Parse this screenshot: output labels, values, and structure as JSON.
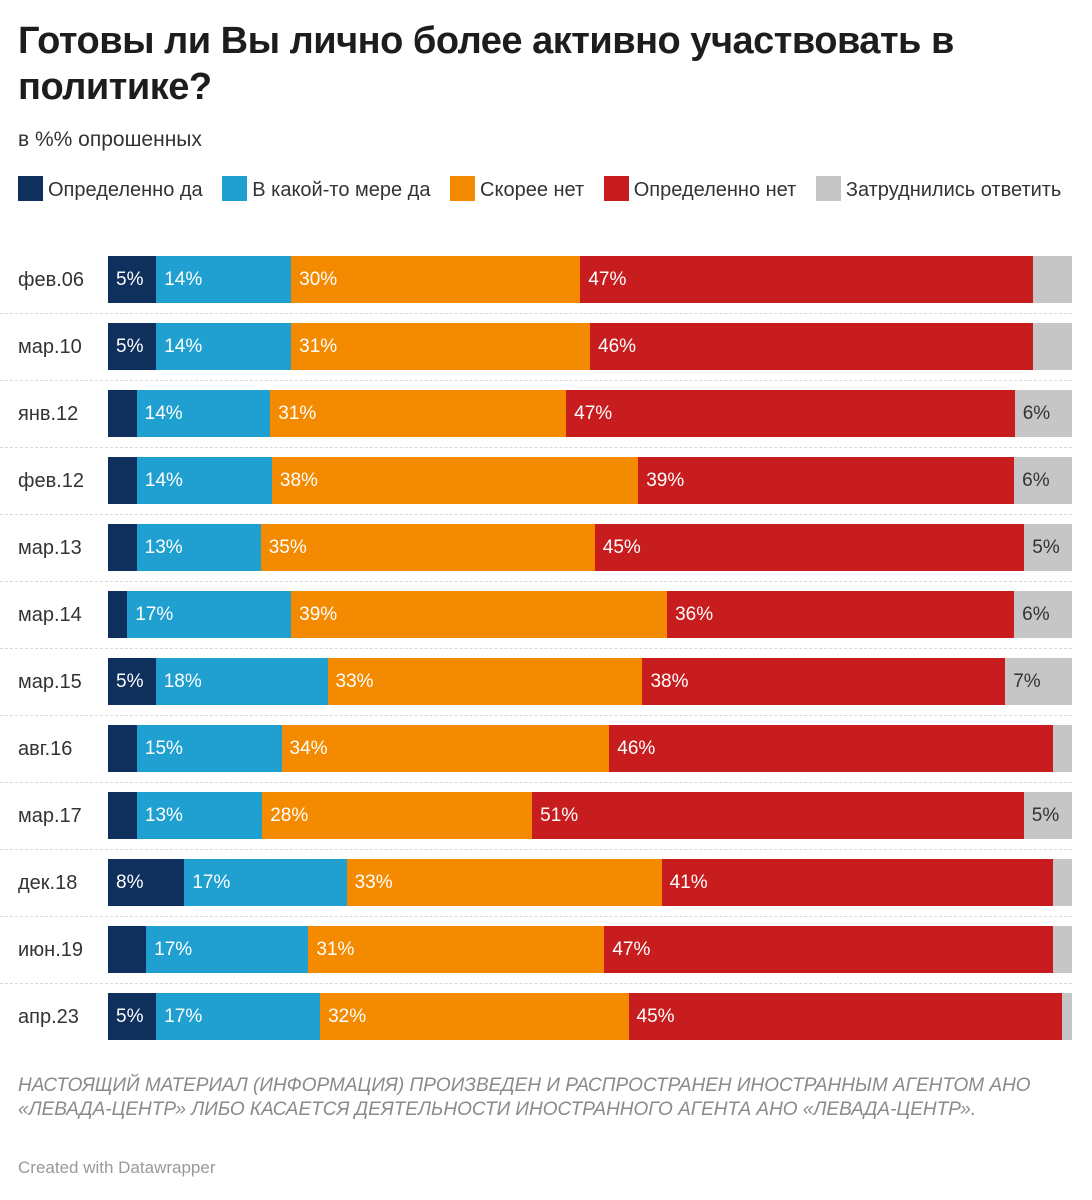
{
  "title": "Готовы ли Вы лично более активно участвовать в политике?",
  "subtitle": "в %% опрошенных",
  "legend": [
    {
      "label": "Определенно да",
      "color": "#0f2f5c"
    },
    {
      "label": "В какой-то мере да",
      "color": "#1fa0d0"
    },
    {
      "label": "Скорее нет",
      "color": "#f38a00"
    },
    {
      "label": "Определенно нет",
      "color": "#c81d1f"
    },
    {
      "label": "Затруднились ответить",
      "color": "#c6c6c6"
    }
  ],
  "chart_data": {
    "type": "bar",
    "orientation": "horizontal-stacked-100",
    "title": "Готовы ли Вы лично более активно участвовать в политике?",
    "subtitle": "в %% опрошенных",
    "categories": [
      "фев.06",
      "мар.10",
      "янв.12",
      "фев.12",
      "мар.13",
      "мар.14",
      "мар.15",
      "авг.16",
      "мар.17",
      "дек.18",
      "июн.19",
      "апр.23"
    ],
    "series": [
      {
        "name": "Определенно да",
        "color": "#0f2f5c",
        "values": [
          5,
          5,
          3,
          3,
          3,
          2,
          5,
          3,
          3,
          8,
          4,
          5
        ]
      },
      {
        "name": "В какой-то мере да",
        "color": "#1fa0d0",
        "values": [
          14,
          14,
          14,
          14,
          13,
          17,
          18,
          15,
          13,
          17,
          17,
          17
        ]
      },
      {
        "name": "Скорее нет",
        "color": "#f38a00",
        "values": [
          30,
          31,
          31,
          38,
          35,
          39,
          33,
          34,
          28,
          33,
          31,
          32
        ]
      },
      {
        "name": "Определенно нет",
        "color": "#c81d1f",
        "values": [
          47,
          46,
          47,
          39,
          45,
          36,
          38,
          46,
          51,
          41,
          47,
          45
        ]
      },
      {
        "name": "Затруднились ответить",
        "color": "#c6c6c6",
        "values": [
          4,
          4,
          6,
          6,
          5,
          6,
          7,
          2,
          5,
          2,
          2,
          1
        ]
      }
    ],
    "labels": [
      [
        "5%",
        "14%",
        "30%",
        "47%",
        ""
      ],
      [
        "5%",
        "14%",
        "31%",
        "46%",
        ""
      ],
      [
        "",
        "14%",
        "31%",
        "47%",
        "6%"
      ],
      [
        "",
        "14%",
        "38%",
        "39%",
        "6%"
      ],
      [
        "",
        "13%",
        "35%",
        "45%",
        "5%"
      ],
      [
        "",
        "17%",
        "39%",
        "36%",
        "6%"
      ],
      [
        "5%",
        "18%",
        "33%",
        "38%",
        "7%"
      ],
      [
        "",
        "15%",
        "34%",
        "46%",
        ""
      ],
      [
        "",
        "13%",
        "28%",
        "51%",
        "5%"
      ],
      [
        "8%",
        "17%",
        "33%",
        "41%",
        ""
      ],
      [
        "",
        "17%",
        "31%",
        "47%",
        ""
      ],
      [
        "5%",
        "17%",
        "32%",
        "45%",
        ""
      ]
    ],
    "xlim": [
      0,
      100
    ]
  },
  "notice": "НАСТОЯЩИЙ МАТЕРИАЛ (ИНФОРМАЦИЯ) ПРОИЗВЕДЕН И РАСПРОСТРАНЕН ИНОСТРАННЫМ АГЕНТОМ АНО «ЛЕВАДА-ЦЕНТР» ЛИБО КАСАЕТСЯ ДЕЯТЕЛЬНОСТИ ИНОСТРАННОГО АГЕНТА АНО «ЛЕВАДА-ЦЕНТР».",
  "credit": "Created with Datawrapper"
}
